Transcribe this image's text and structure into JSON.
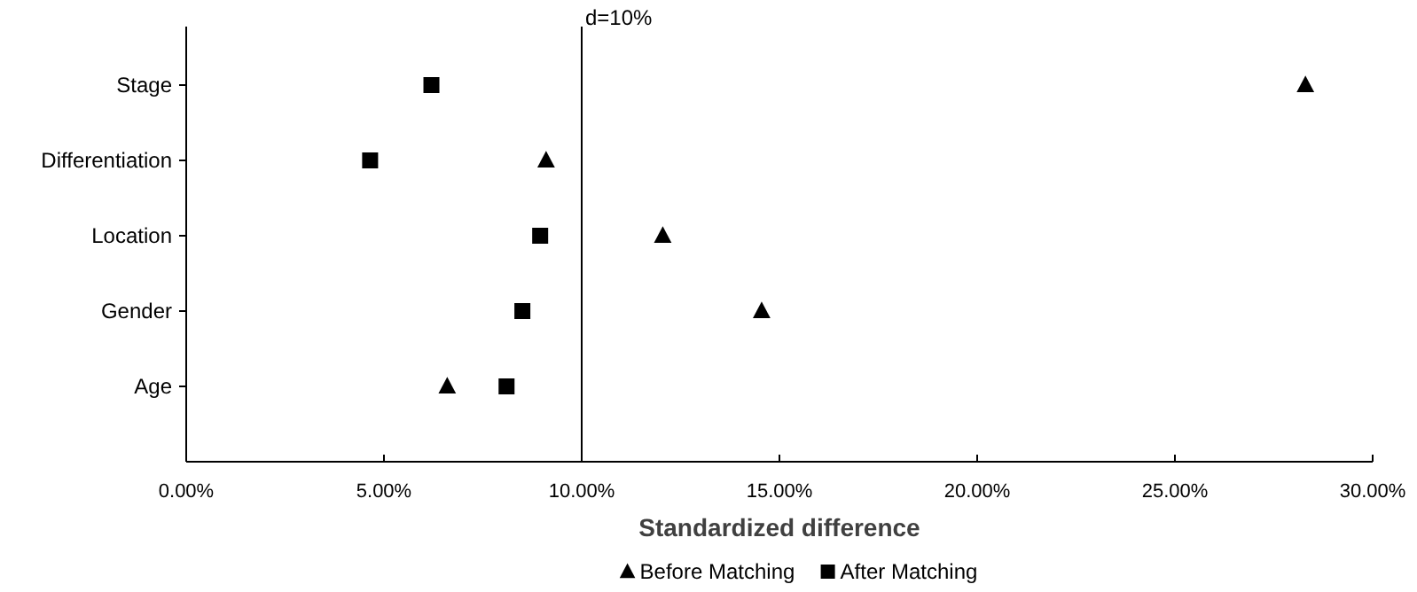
{
  "chart_data": {
    "type": "scatter",
    "orientation": "horizontal",
    "xlabel": "Standardized difference",
    "categories": [
      "Stage",
      "Differentiation",
      "Location",
      "Gender",
      "Age"
    ],
    "series": [
      {
        "name": "Before Matching",
        "color": "#000000",
        "marker": "triangle",
        "values": [
          28.3,
          9.1,
          12.05,
          14.55,
          6.6
        ]
      },
      {
        "name": "After Matching",
        "color": "#000000",
        "marker": "square",
        "values": [
          6.2,
          4.65,
          8.95,
          8.5,
          8.1
        ]
      }
    ],
    "xlim": [
      0,
      30
    ],
    "xticks": [
      {
        "value": 0,
        "label": "0.00%"
      },
      {
        "value": 5,
        "label": "5.00%"
      },
      {
        "value": 10,
        "label": "10.00%"
      },
      {
        "value": 15,
        "label": "15.00%"
      },
      {
        "value": 20,
        "label": "20.00%"
      },
      {
        "value": 25,
        "label": "25.00%"
      },
      {
        "value": 30,
        "label": "30.00%"
      }
    ],
    "ref_lines": [
      {
        "axis": "x",
        "value": 10,
        "label": "d=10%",
        "color": "#000000"
      }
    ],
    "grid": false,
    "legend": "bottom"
  }
}
